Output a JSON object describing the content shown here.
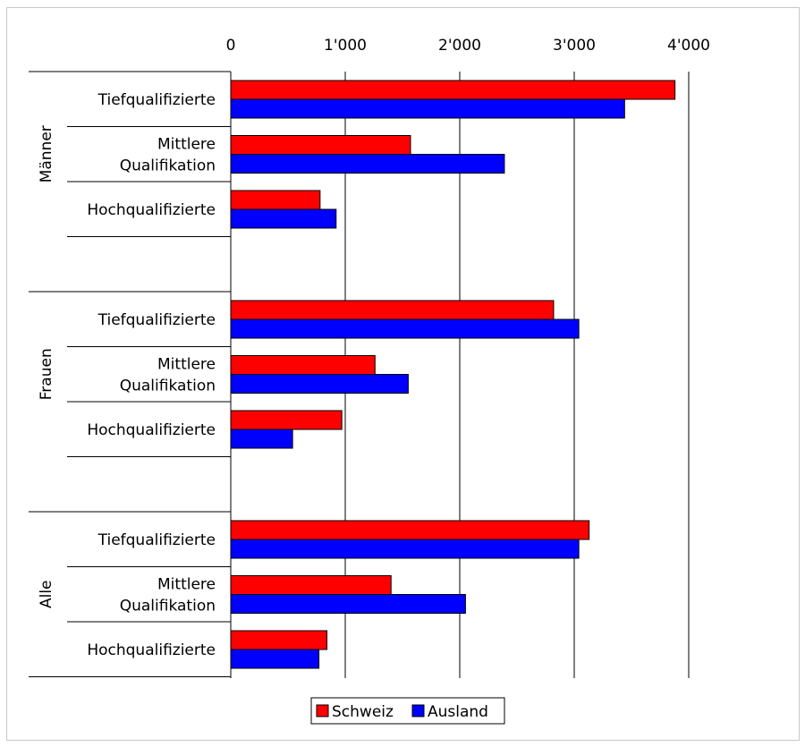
{
  "chart_data": {
    "type": "bar",
    "orientation": "horizontal",
    "title": "",
    "xlabel": "",
    "ylabel": "",
    "xlim": [
      0,
      4000
    ],
    "x_ticks": [
      "0",
      "1'000",
      "2'000",
      "3'000",
      "4'000"
    ],
    "x_tick_values": [
      0,
      1000,
      2000,
      3000,
      4000
    ],
    "x_axis_position": "top",
    "grid": true,
    "groups": [
      {
        "name": "Männer",
        "categories": [
          {
            "label": [
              "Tiefqualifizierte"
            ],
            "values": [
              3880,
              3440
            ]
          },
          {
            "label": [
              "Mittlere",
              "Qualifikation"
            ],
            "values": [
              1570,
              2390
            ]
          },
          {
            "label": [
              "Hochqualifizierte"
            ],
            "values": [
              780,
              920
            ]
          }
        ]
      },
      {
        "name": "Frauen",
        "categories": [
          {
            "label": [
              "Tiefqualifizierte"
            ],
            "values": [
              2820,
              3040
            ]
          },
          {
            "label": [
              "Mittlere",
              "Qualifikation"
            ],
            "values": [
              1260,
              1550
            ]
          },
          {
            "label": [
              "Hochqualifizierte"
            ],
            "values": [
              970,
              540
            ]
          }
        ]
      },
      {
        "name": "Alle",
        "categories": [
          {
            "label": [
              "Tiefqualifizierte"
            ],
            "values": [
              3130,
              3040
            ]
          },
          {
            "label": [
              "Mittlere",
              "Qualifikation"
            ],
            "values": [
              1400,
              2050
            ]
          },
          {
            "label": [
              "Hochqualifizierte"
            ],
            "values": [
              840,
              770
            ]
          }
        ]
      }
    ],
    "series": [
      {
        "name": "Schweiz",
        "color": "#ff0000"
      },
      {
        "name": "Ausland",
        "color": "#0000ff"
      }
    ],
    "legend_position": "bottom-center"
  }
}
